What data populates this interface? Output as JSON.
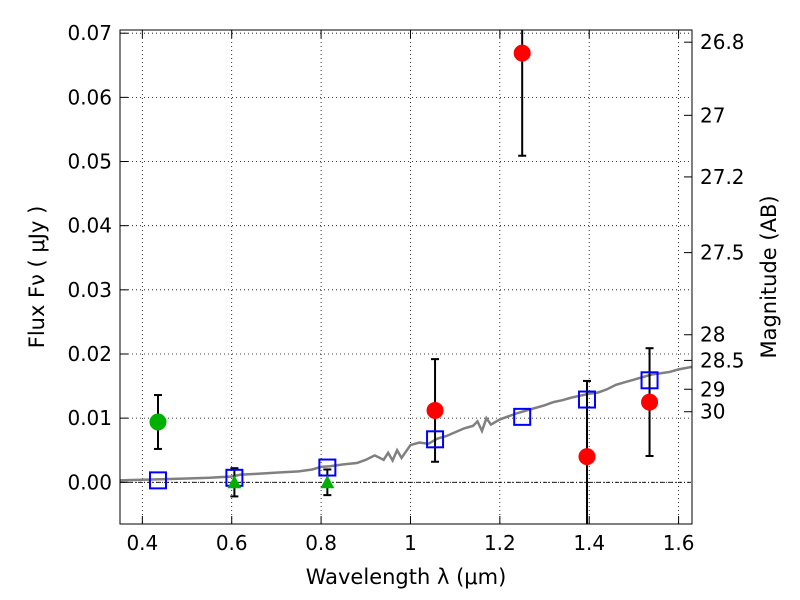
{
  "chart_data": {
    "type": "scatter",
    "title": "",
    "xlabel": "Wavelength  λ (μm)",
    "ylabel": "Flux  Fν  ( μJy )",
    "ylabel_right": "Magnitude (AB)",
    "xlim": [
      0.35,
      1.63
    ],
    "ylim": [
      -0.0065,
      0.0705
    ],
    "x_ticks": [
      0.4,
      0.6,
      0.8,
      1.0,
      1.2,
      1.4,
      1.6
    ],
    "x_tick_labels": [
      "0.4",
      "0.6",
      "0.8",
      "1",
      "1.2",
      "1.4",
      "1.6"
    ],
    "y_ticks": [
      0.0,
      0.01,
      0.02,
      0.03,
      0.04,
      0.05,
      0.06,
      0.07
    ],
    "y_tick_labels": [
      "0.00",
      "0.01",
      "0.02",
      "0.03",
      "0.04",
      "0.05",
      "0.06",
      "0.07"
    ],
    "right_ticks": [
      {
        "flux": 0.0686,
        "label": "26.8"
      },
      {
        "flux": 0.0572,
        "label": "27"
      },
      {
        "flux": 0.0476,
        "label": "27.2"
      },
      {
        "flux": 0.0358,
        "label": "27.5"
      },
      {
        "flux": 0.023,
        "label": "28"
      },
      {
        "flux": 0.019,
        "label": "28.5"
      },
      {
        "flux": 0.0145,
        "label": "29"
      },
      {
        "flux": 0.011,
        "label": "30"
      }
    ],
    "grid": true,
    "zero_line": 0.0,
    "series": [
      {
        "name": "model-spectrum",
        "kind": "line",
        "color": "#808080",
        "x": [
          0.35,
          0.4,
          0.45,
          0.5,
          0.55,
          0.6,
          0.62,
          0.65,
          0.7,
          0.75,
          0.78,
          0.8,
          0.82,
          0.85,
          0.88,
          0.9,
          0.92,
          0.94,
          0.95,
          0.96,
          0.97,
          0.98,
          1.0,
          1.02,
          1.04,
          1.06,
          1.08,
          1.1,
          1.12,
          1.14,
          1.15,
          1.16,
          1.17,
          1.18,
          1.2,
          1.22,
          1.24,
          1.26,
          1.28,
          1.3,
          1.32,
          1.34,
          1.36,
          1.38,
          1.4,
          1.42,
          1.44,
          1.46,
          1.48,
          1.5,
          1.52,
          1.54,
          1.56,
          1.58,
          1.6,
          1.63
        ],
        "y": [
          0.0003,
          0.0004,
          0.0005,
          0.0006,
          0.0007,
          0.0009,
          0.0012,
          0.0013,
          0.0015,
          0.0017,
          0.002,
          0.0024,
          0.0025,
          0.0028,
          0.003,
          0.0035,
          0.0042,
          0.0035,
          0.0046,
          0.0034,
          0.005,
          0.0038,
          0.0058,
          0.0062,
          0.006,
          0.0068,
          0.0072,
          0.0078,
          0.0084,
          0.0088,
          0.0095,
          0.008,
          0.01,
          0.009,
          0.0098,
          0.0103,
          0.0108,
          0.0112,
          0.0116,
          0.012,
          0.0125,
          0.0128,
          0.0132,
          0.0135,
          0.0138,
          0.014,
          0.0145,
          0.0152,
          0.0156,
          0.016,
          0.0164,
          0.0168,
          0.017,
          0.0172,
          0.0176,
          0.018
        ]
      },
      {
        "name": "model-photometry",
        "kind": "open-square",
        "color": "#0000ff",
        "x": [
          0.435,
          0.606,
          0.814,
          1.055,
          1.25,
          1.395,
          1.535
        ],
        "y": [
          0.0003,
          0.0007,
          0.0023,
          0.0067,
          0.0102,
          0.0129,
          0.0159
        ]
      },
      {
        "name": "detections-red",
        "kind": "filled-circle",
        "color": "#ff0000",
        "x": [
          1.055,
          1.25,
          1.395,
          1.535
        ],
        "y": [
          0.0112,
          0.0669,
          0.004,
          0.0125
        ],
        "err": [
          0.008,
          0.016,
          0.0118,
          0.0084
        ]
      },
      {
        "name": "detections-green",
        "kind": "filled-circle",
        "color": "#00b000",
        "x": [
          0.435
        ],
        "y": [
          0.0094
        ],
        "err": [
          0.0042
        ]
      },
      {
        "name": "upper-limits-green",
        "kind": "triangle",
        "color": "#00b000",
        "x": [
          0.606,
          0.814
        ],
        "y": [
          0.0,
          0.0
        ],
        "err": [
          0.0022,
          0.002
        ]
      }
    ]
  }
}
